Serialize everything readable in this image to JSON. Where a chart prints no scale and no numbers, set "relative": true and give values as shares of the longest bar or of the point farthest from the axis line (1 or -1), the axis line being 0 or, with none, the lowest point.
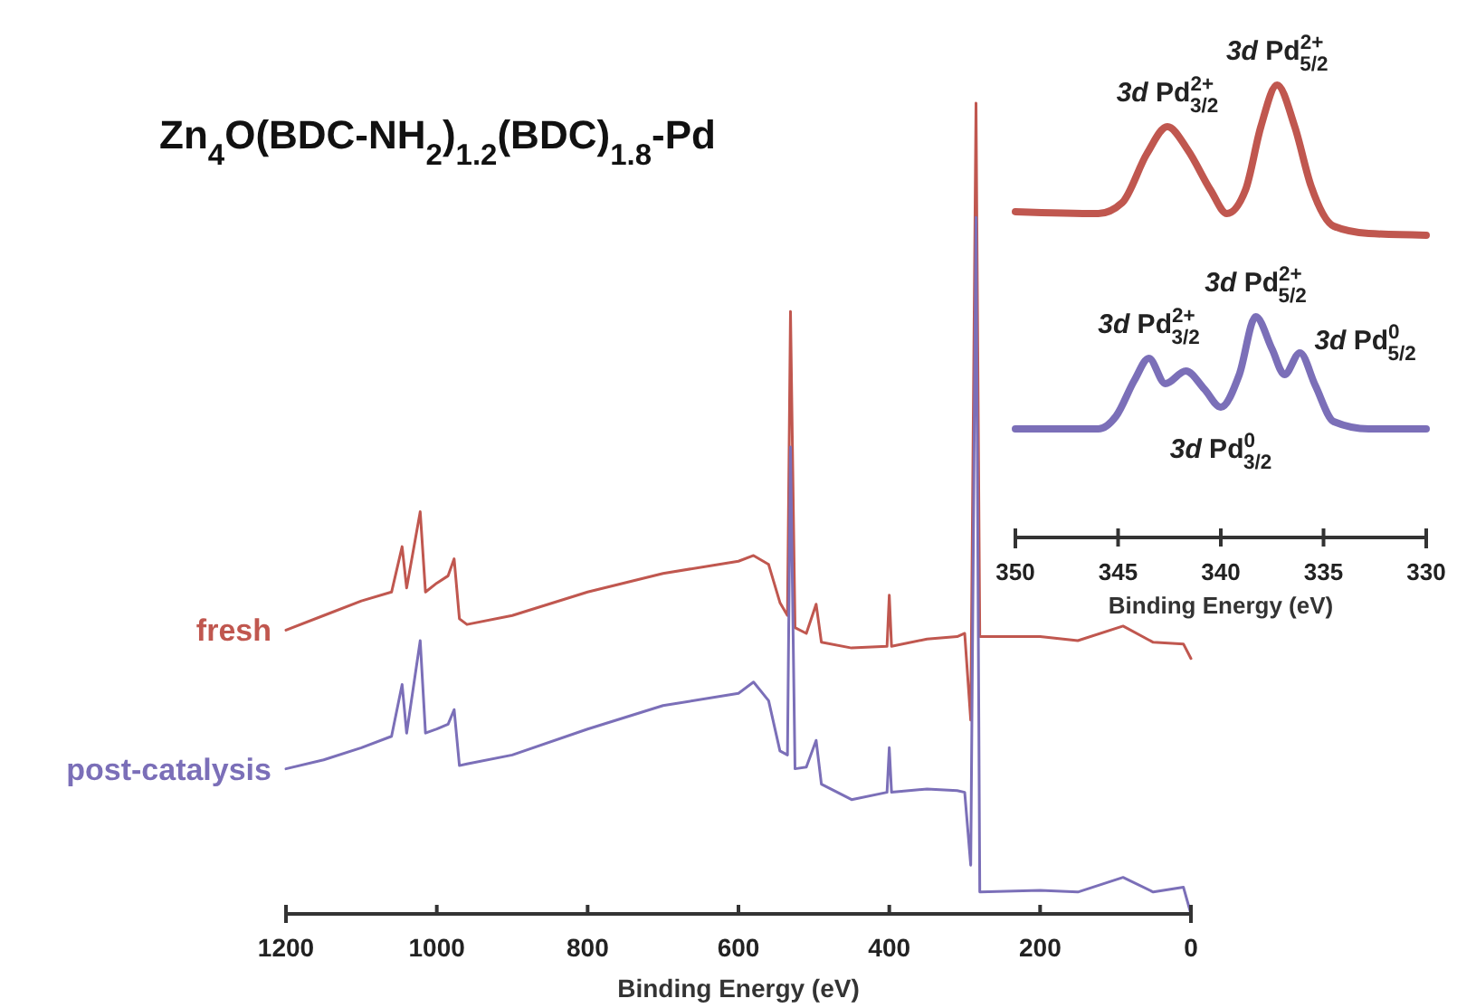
{
  "chart_data": [
    {
      "type": "line",
      "title": "Zn$_{4}$O(BDC-NH$_{2}$)$_{1.2}$(BDC)$_{1.8}$-Pd",
      "xlabel": "Binding Energy (eV)",
      "relative": true,
      "xlim": [
        1200,
        0
      ],
      "xticks": [
        1200,
        1000,
        800,
        600,
        400,
        200,
        0
      ],
      "legend": false,
      "x": [
        1200,
        1150,
        1100,
        1060,
        1046,
        1040,
        1022,
        1015,
        1000,
        985,
        977,
        970,
        960,
        900,
        800,
        700,
        600,
        580,
        560,
        545,
        535,
        531,
        525,
        510,
        497,
        490,
        450,
        403,
        400,
        397,
        350,
        310,
        300,
        292,
        285,
        280,
        200,
        150,
        90,
        50,
        10,
        0
      ],
      "series": [
        {
          "name": "fresh",
          "color": "#c0574f",
          "values": [
            0.35,
            0.368,
            0.386,
            0.397,
            0.453,
            0.402,
            0.496,
            0.397,
            0.408,
            0.417,
            0.438,
            0.364,
            0.357,
            0.368,
            0.397,
            0.42,
            0.435,
            0.442,
            0.431,
            0.384,
            0.368,
            0.743,
            0.353,
            0.346,
            0.382,
            0.335,
            0.328,
            0.33,
            0.393,
            0.33,
            0.339,
            0.342,
            0.346,
            0.239,
            1,
            0.342,
            0.342,
            0.337,
            0.355,
            0.335,
            0.333,
            0.315
          ]
        },
        {
          "name": "post-catalysis",
          "color": "#7b6fb8",
          "values": [
            0.179,
            0.19,
            0.205,
            0.219,
            0.283,
            0.223,
            0.337,
            0.223,
            0.228,
            0.234,
            0.252,
            0.183,
            0.185,
            0.196,
            0.228,
            0.257,
            0.272,
            0.286,
            0.263,
            0.201,
            0.196,
            0.576,
            0.179,
            0.181,
            0.214,
            0.16,
            0.141,
            0.15,
            0.205,
            0.15,
            0.154,
            0.152,
            0.15,
            0.06,
            0.859,
            0.027,
            0.029,
            0.027,
            0.045,
            0.027,
            0.033,
            0
          ]
        }
      ]
    },
    {
      "type": "line",
      "xlabel": "Binding Energy (eV)",
      "relative": true,
      "xlim": [
        350,
        330
      ],
      "xticks": [
        350,
        345,
        340,
        335,
        330
      ],
      "x": [
        350,
        345.96,
        344.8,
        343.6,
        342.6,
        341.6,
        340.5,
        339.7,
        338.8,
        338.05,
        337.26,
        336.4,
        335.6,
        334.5,
        332.8,
        330
      ],
      "series": [
        {
          "color": "#c0574f",
          "values": [
            0.72,
            0.716,
            0.74,
            0.848,
            0.908,
            0.856,
            0.768,
            0.716,
            0.768,
            0.908,
            1,
            0.908,
            0.776,
            0.688,
            0.672,
            0.668
          ]
        },
        {
          "color": "#7b6fb8",
          "x": [
            350,
            345.96,
            345.1,
            344.2,
            343.5,
            342.7,
            341.7,
            340.8,
            340,
            339.1,
            338.3,
            337.5,
            336.9,
            336.15,
            335.4,
            334.5,
            332.8,
            330
          ],
          "values": [
            0.24,
            0.24,
            0.268,
            0.348,
            0.396,
            0.34,
            0.368,
            0.328,
            0.288,
            0.36,
            0.488,
            0.416,
            0.36,
            0.408,
            0.336,
            0.256,
            0.24,
            0.24
          ]
        }
      ],
      "annotations": [
        {
          "text": "3d Pd$^{2+}$$_{3/2}$",
          "x": 342.6,
          "y": 0.908
        },
        {
          "text": "3d Pd$^{2+}$$_{5/2}$",
          "x": 337.26,
          "y": 1
        },
        {
          "text": "3d Pd$^{2+}$$_{3/2}$",
          "x": 343.5,
          "y": 0.396
        },
        {
          "text": "3d Pd$^{2+}$$_{5/2}$",
          "x": 338.3,
          "y": 0.488
        },
        {
          "text": "3d Pd$^{0}$$_{5/2}$",
          "x": 336.15,
          "y": 0.408
        },
        {
          "text": "3d Pd$^{0}$$_{3/2}$",
          "x": 340,
          "y": 0.288
        }
      ]
    }
  ]
}
